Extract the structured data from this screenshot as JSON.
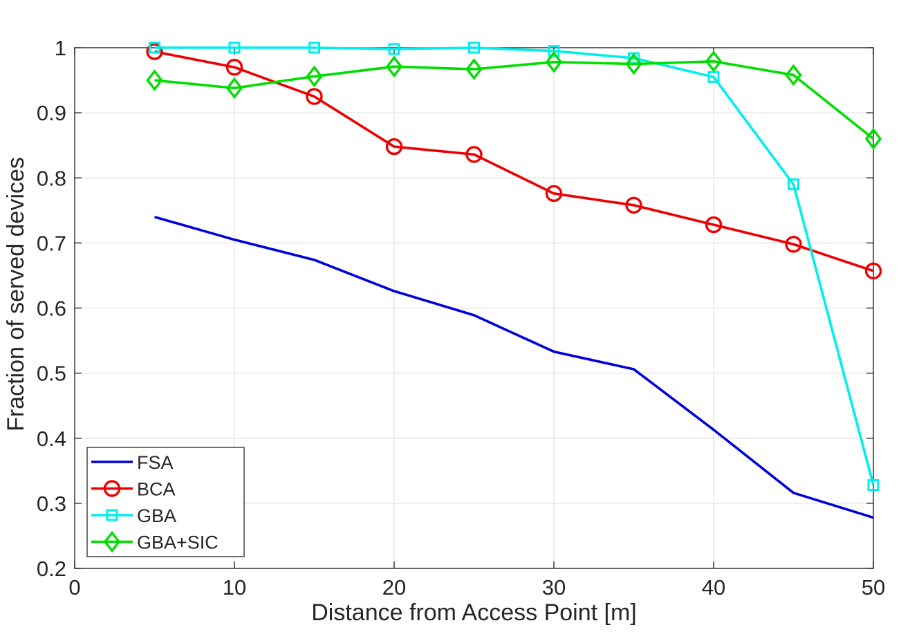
{
  "chart_data": {
    "type": "line",
    "title": "",
    "xlabel": "Distance from Access Point [m]",
    "ylabel": "Fraction of served devices",
    "xlim": [
      0,
      50
    ],
    "ylim": [
      0.2,
      1
    ],
    "xticks": [
      0,
      10,
      20,
      30,
      40,
      50
    ],
    "xtick_labels": [
      "0",
      "10",
      "20",
      "30",
      "40",
      "50"
    ],
    "yticks": [
      0.2,
      0.3,
      0.4,
      0.5,
      0.6,
      0.7,
      0.8,
      0.9,
      1
    ],
    "ytick_labels": [
      "0.2",
      "0.3",
      "0.4",
      "0.5",
      "0.6",
      "0.7",
      "0.8",
      "0.9",
      "1"
    ],
    "grid": true,
    "legend_position": "bottom-left",
    "x": [
      5,
      10,
      15,
      20,
      25,
      30,
      35,
      40,
      45,
      50
    ],
    "series": [
      {
        "name": "FSA",
        "color": "#0000dd",
        "marker": "none",
        "values": [
          0.74,
          0.705,
          0.674,
          0.626,
          0.589,
          0.533,
          0.506,
          0.413,
          0.316,
          0.278
        ]
      },
      {
        "name": "BCA",
        "color": "#ee0000",
        "marker": "circle",
        "values": [
          0.994,
          0.97,
          0.925,
          0.848,
          0.836,
          0.776,
          0.758,
          0.728,
          0.698,
          0.657
        ]
      },
      {
        "name": "GBA",
        "color": "#00eeee",
        "marker": "square",
        "values": [
          1.0,
          1.0,
          1.0,
          0.998,
          1.0,
          0.995,
          0.984,
          0.955,
          0.79,
          0.328
        ]
      },
      {
        "name": "GBA+SIC",
        "color": "#00dd00",
        "marker": "diamond",
        "values": [
          0.95,
          0.938,
          0.956,
          0.971,
          0.967,
          0.978,
          0.975,
          0.979,
          0.958,
          0.86
        ]
      }
    ]
  }
}
